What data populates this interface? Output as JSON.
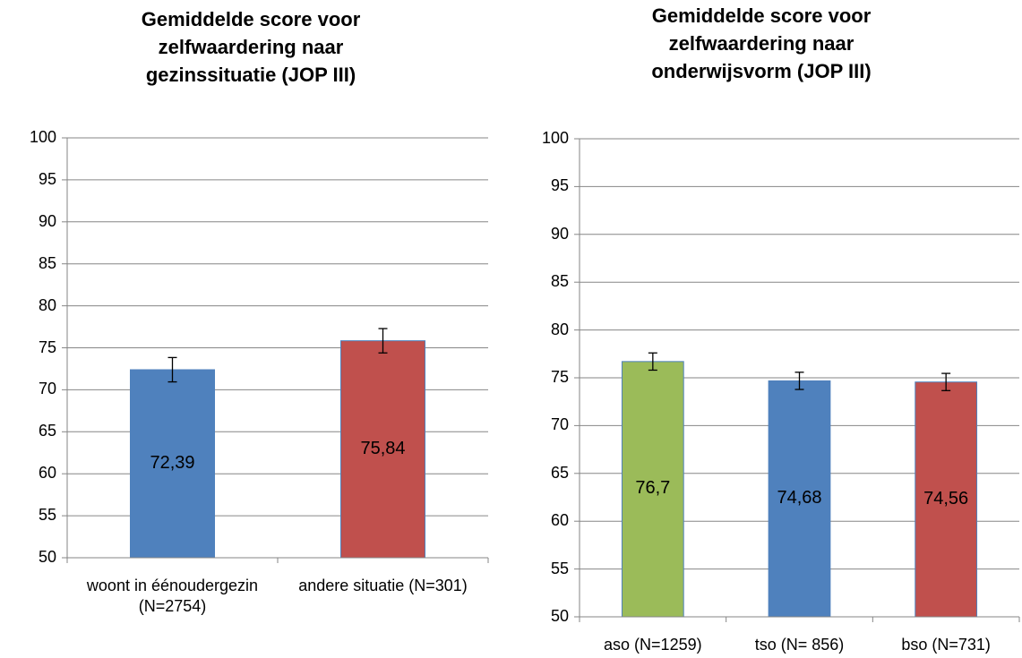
{
  "chart_data": [
    {
      "type": "bar",
      "title": "Gemiddelde score voor zelfwaardering naar gezinssituatie (JOP III)",
      "categories": [
        "woont in éénoudergezin (N=2754)",
        "andere situatie (N=301)"
      ],
      "values": [
        72.39,
        75.84
      ],
      "value_labels": [
        "72,39",
        "75,84"
      ],
      "errors": [
        1.45,
        1.45
      ],
      "colors": [
        "#4f81bd",
        "#c0504d"
      ],
      "ylim": [
        50,
        100
      ],
      "yticks": [
        50,
        55,
        60,
        65,
        70,
        75,
        80,
        85,
        90,
        95,
        100
      ],
      "grid": true
    },
    {
      "type": "bar",
      "title": "Gemiddelde score voor zelfwaardering naar onderwijsvorm (JOP III)",
      "categories": [
        "aso (N=1259)",
        "tso (N= 856)",
        "bso (N=731)"
      ],
      "values": [
        76.7,
        74.68,
        74.56
      ],
      "value_labels": [
        "76,7",
        "74,68",
        "74,56"
      ],
      "errors": [
        0.9,
        0.9,
        0.9
      ],
      "colors": [
        "#9bbb59",
        "#4f81bd",
        "#c0504d"
      ],
      "ylim": [
        50,
        100
      ],
      "yticks": [
        50,
        55,
        60,
        65,
        70,
        75,
        80,
        85,
        90,
        95,
        100
      ],
      "grid": true
    }
  ]
}
